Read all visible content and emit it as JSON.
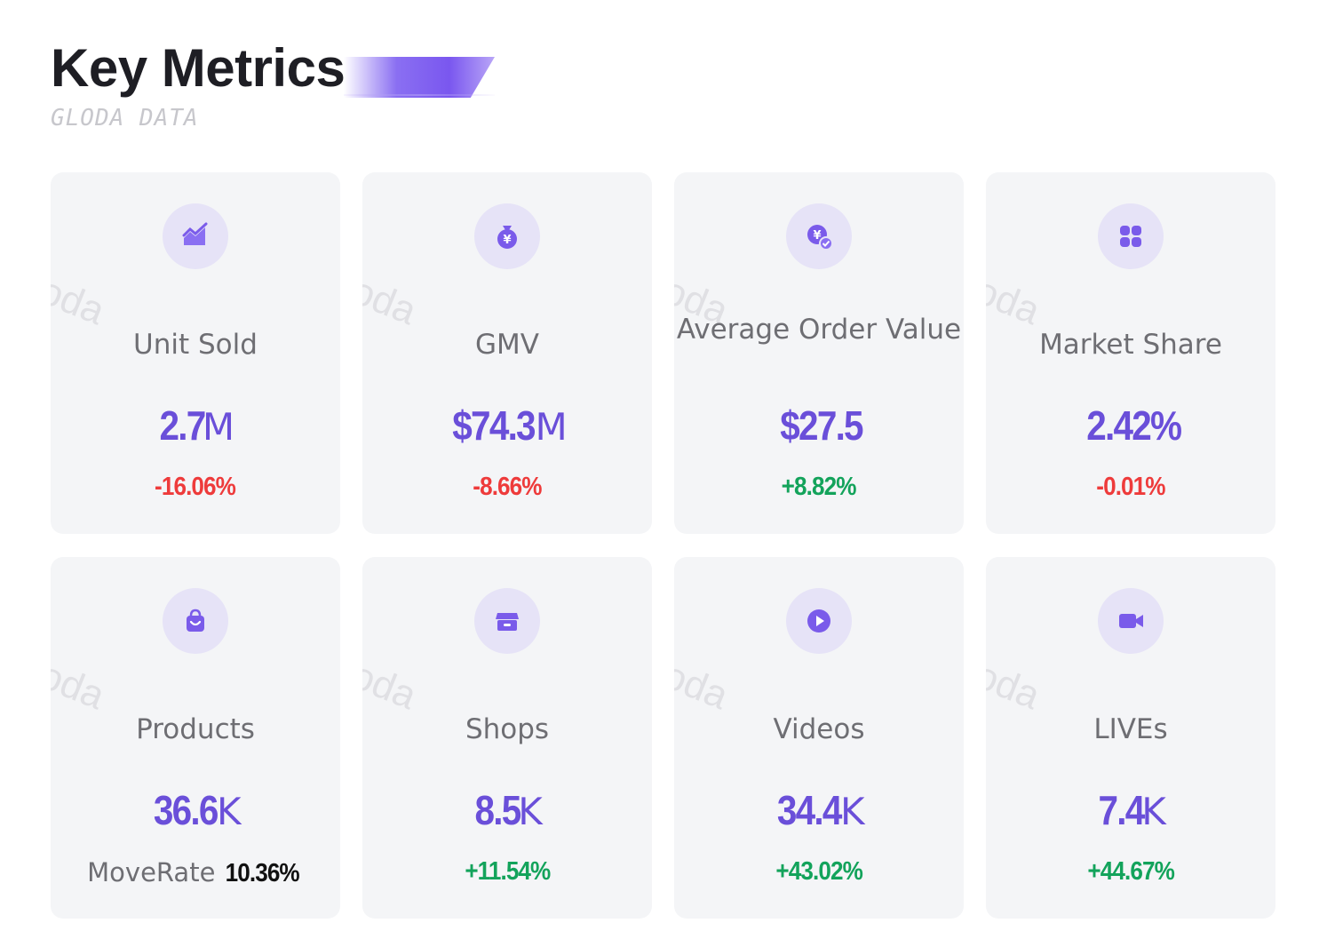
{
  "header": {
    "title": "Key Metrics",
    "subtitle": "GLODA DATA"
  },
  "watermark_text": "Gloda",
  "colors": {
    "accent": "#6a4fd9",
    "icon_bg": "#e6e3f7",
    "card_bg": "#f4f5f7",
    "negative": "#ee3b3b",
    "positive": "#13a35b"
  },
  "cards": [
    {
      "label": "Unit Sold",
      "value": "2.7",
      "unit": "M",
      "change": "-16.06%",
      "trend": "negative",
      "icon": "trend-chart-icon"
    },
    {
      "label": "GMV",
      "value": "$74.3",
      "unit": "M",
      "change": "-8.66%",
      "trend": "negative",
      "icon": "money-bag-icon"
    },
    {
      "label": "Average Order Value",
      "value": "$27.5",
      "unit": "",
      "change": "+8.82%",
      "trend": "positive",
      "icon": "coin-check-icon"
    },
    {
      "label": "Market Share",
      "value": "2.42%",
      "unit": "",
      "change": "-0.01%",
      "trend": "negative",
      "icon": "grid-icon"
    },
    {
      "label": "Products",
      "value": "36.6",
      "unit": "K",
      "change_label": "MoveRate",
      "change": "10.36%",
      "trend": "neutral",
      "icon": "shopping-bag-icon"
    },
    {
      "label": "Shops",
      "value": "8.5",
      "unit": "K",
      "change": "+11.54%",
      "trend": "positive",
      "icon": "shop-icon"
    },
    {
      "label": "Videos",
      "value": "34.4",
      "unit": "K",
      "change": "+43.02%",
      "trend": "positive",
      "icon": "play-icon"
    },
    {
      "label": "LIVEs",
      "value": "7.4",
      "unit": "K",
      "change": "+44.67%",
      "trend": "positive",
      "icon": "video-camera-icon"
    }
  ]
}
